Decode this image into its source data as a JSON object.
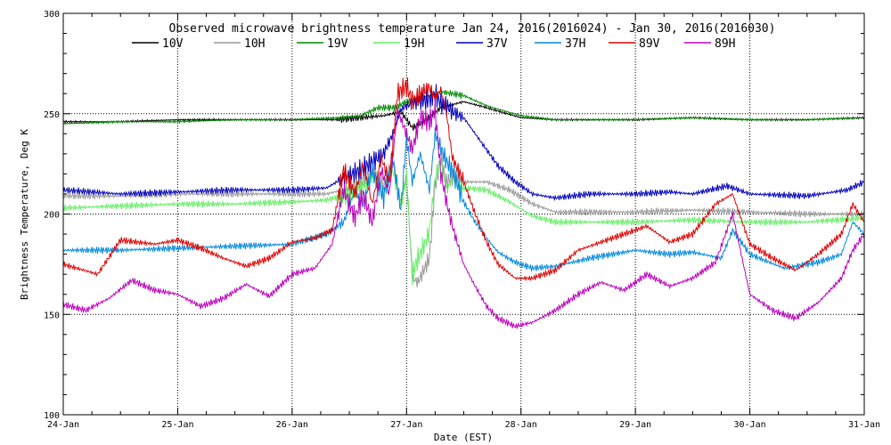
{
  "chart_data": {
    "type": "line",
    "title": "Observed microwave brightness temperature Jan 24, 2016(2016024) - Jan 30, 2016(2016030)",
    "xlabel": "Date (EST)",
    "ylabel": "Brightness Temperature, Deg K",
    "xlim": [
      0,
      7
    ],
    "ylim": [
      100,
      300
    ],
    "x_ticks": [
      0,
      1,
      2,
      3,
      4,
      5,
      6,
      7
    ],
    "x_tick_labels": [
      "24-Jan",
      "25-Jan",
      "26-Jan",
      "27-Jan",
      "28-Jan",
      "29-Jan",
      "30-Jan",
      "31-Jan"
    ],
    "y_ticks": [
      100,
      150,
      200,
      250,
      300
    ],
    "y_tick_labels": [
      "100",
      "150",
      "200",
      "250",
      "300"
    ],
    "grid": "dotted",
    "series": [
      {
        "name": "10V",
        "color": "#000000",
        "x": [
          0,
          0.5,
          1,
          1.5,
          2,
          2.4,
          2.6,
          2.8,
          2.95,
          3.05,
          3.15,
          3.3,
          3.5,
          3.7,
          4.0,
          4.3,
          4.6,
          5,
          5.5,
          6,
          6.5,
          7
        ],
        "y": [
          246,
          246,
          247,
          247,
          247,
          247,
          248,
          249,
          251,
          243,
          246,
          253,
          256,
          253,
          248,
          247,
          247,
          247,
          248,
          247,
          247,
          248
        ]
      },
      {
        "name": "10H",
        "color": "#999999",
        "x": [
          0,
          0.5,
          1,
          1.5,
          2,
          2.3,
          2.45,
          2.6,
          2.7,
          2.8,
          2.88,
          2.95,
          3.0,
          3.05,
          3.1,
          3.15,
          3.2,
          3.25,
          3.3,
          3.35,
          3.4,
          3.5,
          3.7,
          3.9,
          4.1,
          4.3,
          4.6,
          5,
          5.5,
          6,
          6.5,
          7
        ],
        "y": [
          209,
          209,
          210,
          210,
          210,
          210,
          212,
          216,
          221,
          214,
          226,
          206,
          220,
          168,
          166,
          172,
          178,
          215,
          228,
          215,
          219,
          216,
          216,
          212,
          205,
          201,
          201,
          201,
          202,
          201,
          200,
          200
        ]
      },
      {
        "name": "19V",
        "color": "#008800",
        "x": [
          0,
          0.5,
          1,
          1.5,
          2,
          2.4,
          2.6,
          2.75,
          2.9,
          3.0,
          3.1,
          3.2,
          3.3,
          3.5,
          3.7,
          4.0,
          4.3,
          4.6,
          5,
          5.5,
          6,
          6.5,
          7
        ],
        "y": [
          245,
          246,
          246,
          247,
          247,
          248,
          249,
          253,
          253,
          256,
          258,
          259,
          261,
          259,
          254,
          249,
          247,
          247,
          247,
          248,
          247,
          247,
          248
        ]
      },
      {
        "name": "19H",
        "color": "#66ee66",
        "x": [
          0,
          0.5,
          1,
          1.5,
          2,
          2.3,
          2.45,
          2.6,
          2.7,
          2.8,
          2.88,
          2.95,
          3.0,
          3.05,
          3.1,
          3.15,
          3.2,
          3.25,
          3.3,
          3.35,
          3.4,
          3.5,
          3.7,
          3.9,
          4.1,
          4.3,
          4.6,
          5,
          5.5,
          6,
          6.5,
          7
        ],
        "y": [
          203,
          204,
          205,
          205,
          206,
          207,
          209,
          213,
          218,
          210,
          222,
          205,
          218,
          170,
          178,
          184,
          191,
          218,
          226,
          212,
          217,
          213,
          212,
          206,
          199,
          196,
          196,
          196,
          197,
          196,
          196,
          198
        ]
      },
      {
        "name": "37V",
        "color": "#0000bb",
        "x": [
          0,
          0.5,
          1,
          1.5,
          2,
          2.3,
          2.45,
          2.6,
          2.7,
          2.8,
          2.88,
          2.95,
          3.0,
          3.1,
          3.2,
          3.25,
          3.3,
          3.35,
          3.4,
          3.5,
          3.6,
          3.7,
          3.8,
          3.95,
          4.1,
          4.3,
          4.6,
          5,
          5.3,
          5.5,
          5.8,
          6,
          6.5,
          6.85,
          7
        ],
        "y": [
          212,
          210,
          211,
          212,
          212,
          213,
          218,
          222,
          226,
          230,
          240,
          252,
          254,
          256,
          257,
          260,
          255,
          254,
          251,
          248,
          240,
          232,
          224,
          216,
          210,
          208,
          210,
          210,
          211,
          210,
          214,
          210,
          209,
          212,
          216
        ]
      },
      {
        "name": "37H",
        "color": "#0088dd",
        "x": [
          0,
          0.5,
          1,
          1.5,
          2,
          2.3,
          2.45,
          2.55,
          2.62,
          2.7,
          2.8,
          2.88,
          2.95,
          3.0,
          3.05,
          3.12,
          3.2,
          3.25,
          3.3,
          3.35,
          3.4,
          3.5,
          3.6,
          3.7,
          3.8,
          3.95,
          4.1,
          4.3,
          4.6,
          5,
          5.3,
          5.5,
          5.75,
          5.85,
          6,
          6.3,
          6.6,
          6.8,
          6.9,
          7
        ],
        "y": [
          182,
          182,
          183,
          184,
          185,
          190,
          196,
          212,
          204,
          222,
          208,
          228,
          202,
          238,
          216,
          230,
          212,
          240,
          233,
          226,
          222,
          206,
          196,
          188,
          181,
          176,
          173,
          174,
          178,
          182,
          180,
          181,
          178,
          192,
          180,
          173,
          176,
          180,
          196,
          190
        ]
      },
      {
        "name": "89V",
        "color": "#dd0000",
        "x": [
          0,
          0.3,
          0.5,
          0.8,
          1,
          1.2,
          1.4,
          1.6,
          1.8,
          2,
          2.2,
          2.35,
          2.45,
          2.55,
          2.62,
          2.7,
          2.78,
          2.85,
          2.92,
          3.0,
          3.05,
          3.12,
          3.2,
          3.25,
          3.3,
          3.35,
          3.4,
          3.5,
          3.6,
          3.7,
          3.8,
          3.95,
          4.1,
          4.3,
          4.5,
          4.7,
          4.9,
          5.1,
          5.3,
          5.5,
          5.7,
          5.85,
          6,
          6.2,
          6.4,
          6.6,
          6.8,
          6.9,
          7
        ],
        "y": [
          175,
          170,
          187,
          185,
          187,
          183,
          178,
          174,
          178,
          186,
          188,
          192,
          222,
          210,
          225,
          205,
          228,
          216,
          260,
          264,
          256,
          260,
          263,
          258,
          262,
          250,
          228,
          216,
          200,
          186,
          175,
          168,
          168,
          172,
          182,
          186,
          190,
          194,
          186,
          190,
          205,
          210,
          185,
          178,
          172,
          180,
          190,
          205,
          196
        ]
      },
      {
        "name": "89H",
        "color": "#bb00bb",
        "x": [
          0,
          0.2,
          0.4,
          0.6,
          0.8,
          1,
          1.2,
          1.4,
          1.6,
          1.8,
          2,
          2.2,
          2.35,
          2.45,
          2.55,
          2.62,
          2.7,
          2.78,
          2.85,
          2.92,
          3.0,
          3.05,
          3.12,
          3.2,
          3.25,
          3.3,
          3.35,
          3.4,
          3.5,
          3.6,
          3.7,
          3.8,
          3.95,
          4.1,
          4.3,
          4.5,
          4.7,
          4.9,
          5.1,
          5.3,
          5.5,
          5.7,
          5.85,
          6,
          6.2,
          6.4,
          6.6,
          6.8,
          6.9,
          7
        ],
        "y": [
          155,
          152,
          158,
          167,
          162,
          160,
          154,
          158,
          165,
          159,
          170,
          173,
          185,
          212,
          198,
          210,
          196,
          222,
          210,
          252,
          240,
          232,
          248,
          246,
          252,
          220,
          206,
          194,
          175,
          164,
          154,
          148,
          144,
          146,
          152,
          160,
          166,
          162,
          170,
          164,
          168,
          176,
          200,
          160,
          152,
          148,
          156,
          168,
          182,
          190
        ]
      }
    ]
  }
}
